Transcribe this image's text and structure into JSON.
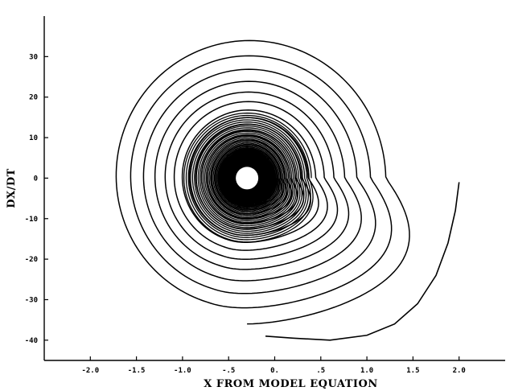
{
  "chart_data": {
    "type": "line",
    "title": "",
    "xlabel": "X FROM MODEL EQUATION",
    "ylabel": "DX/DT",
    "xlim": [
      -2.5,
      2.5
    ],
    "ylim": [
      -45,
      40
    ],
    "xticks": [
      -2.0,
      -1.5,
      -1.0,
      -0.5,
      0.0,
      0.5,
      1.0,
      1.5,
      2.0
    ],
    "yticks": [
      -40,
      -30,
      -20,
      -10,
      0,
      10,
      20,
      30
    ],
    "grid": false,
    "legend": "none",
    "tick_labels_x": [
      "-2.0",
      "-1.5",
      "-1.0",
      "-.5",
      "0.",
      ".5",
      "1.0",
      "1.5",
      "2.0"
    ],
    "tick_labels_y": [
      "-40",
      "-30",
      "-20",
      "-10",
      "0",
      "10",
      "20",
      "30"
    ],
    "series": [
      {
        "values": "spiral trajectory from approximately (2.0, -1) inward to a fixed point near (-0.3, 0)",
        "start": [
          2.0,
          -1.0
        ],
        "center": [
          -0.3,
          0.0
        ],
        "outer_loop_extent": {
          "x_min": -1.9,
          "x_max": 1.6,
          "y_min": -39,
          "y_max": 33
        }
      }
    ],
    "colors": {
      "line": "#000000",
      "background": "#ffffff",
      "axes": "#000000"
    }
  }
}
